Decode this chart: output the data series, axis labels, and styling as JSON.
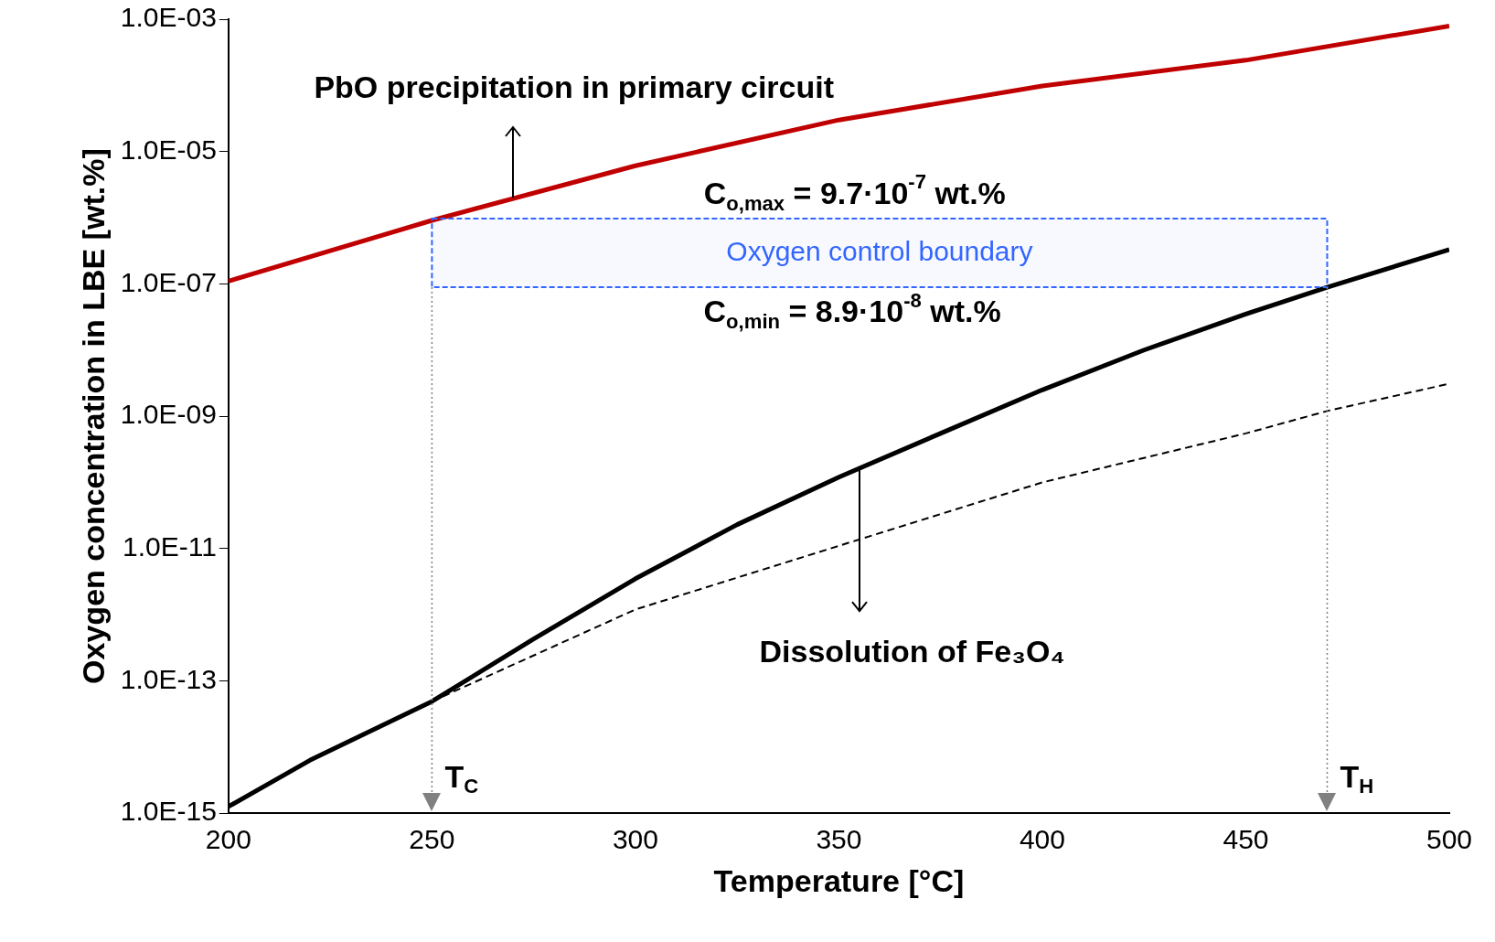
{
  "chart_data": {
    "type": "line",
    "xlabel": "Temperature [°C]",
    "ylabel": "Oxygen concentration in LBE [wt.%]",
    "log": "y",
    "xlim": [
      200,
      500
    ],
    "xticks": [
      200,
      250,
      300,
      350,
      400,
      450,
      500
    ],
    "ylim": [
      1e-15,
      0.001
    ],
    "yticks": [
      {
        "value": 1e-15,
        "label": "1.0E-15"
      },
      {
        "value": 1e-13,
        "label": "1.0E-13"
      },
      {
        "value": 1e-11,
        "label": "1.0E-11"
      },
      {
        "value": 1e-09,
        "label": "1.0E-09"
      },
      {
        "value": 1e-07,
        "label": "1.0E-07"
      },
      {
        "value": 1e-05,
        "label": "1.0E-05"
      },
      {
        "value": 0.001,
        "label": "1.0E-03"
      }
    ],
    "grid": false,
    "legend": false,
    "marker": "none",
    "series": [
      {
        "color": "#c00000",
        "line_style": "solid",
        "x": [
          200,
          250,
          300,
          350,
          400,
          450,
          500
        ],
        "values": [
          1.1e-07,
          9.1e-07,
          6.1e-06,
          3e-05,
          9.8e-05,
          0.00024,
          0.00079
        ]
      },
      {
        "color": "#000000",
        "line_style": "solid",
        "x": [
          200,
          220,
          250,
          275,
          300,
          325,
          350,
          375,
          400,
          425,
          450,
          470,
          500
        ],
        "values": [
          1.26e-15,
          6.3e-15,
          4.9e-14,
          4.3e-13,
          3.5e-12,
          2.3e-11,
          1.2e-10,
          5.5e-10,
          2.5e-09,
          1e-08,
          3.5e-08,
          8.9e-08,
          3.3e-07
        ]
      },
      {
        "color": "#000000",
        "line_style": "dashed",
        "x": [
          250,
          300,
          350,
          400,
          450,
          470,
          500
        ],
        "values": [
          4.9e-14,
          1.2e-12,
          1.1e-11,
          1e-10,
          5.5e-10,
          1.2e-09,
          3.1e-09
        ]
      }
    ],
    "bands": [
      {
        "axis": "y",
        "from": 8.9e-08,
        "to": 9.7e-07,
        "label": "Oxygen control boundary",
        "color": "#3366ff"
      }
    ],
    "ref_lines": [
      {
        "axis": "x",
        "value": 250,
        "label": "T$_{C}$",
        "color": "#808080",
        "line_style": "dotted"
      },
      {
        "axis": "x",
        "value": 470,
        "label": "T$_{H}$",
        "color": "#808080",
        "line_style": "dotted"
      }
    ],
    "annotations": [
      {
        "text": "PbO precipitation in primary circuit",
        "x": 270,
        "y": 2e-06
      },
      "C$_{o,max}$ = 9.7·10$^{-7}$ wt.%",
      "C$_{o,min}$ = 8.9·10$^{-8}$ wt.%",
      {
        "text": "Dissolution of Fe₃O₄",
        "x": 355,
        "y": 1.6e-10
      }
    ]
  }
}
